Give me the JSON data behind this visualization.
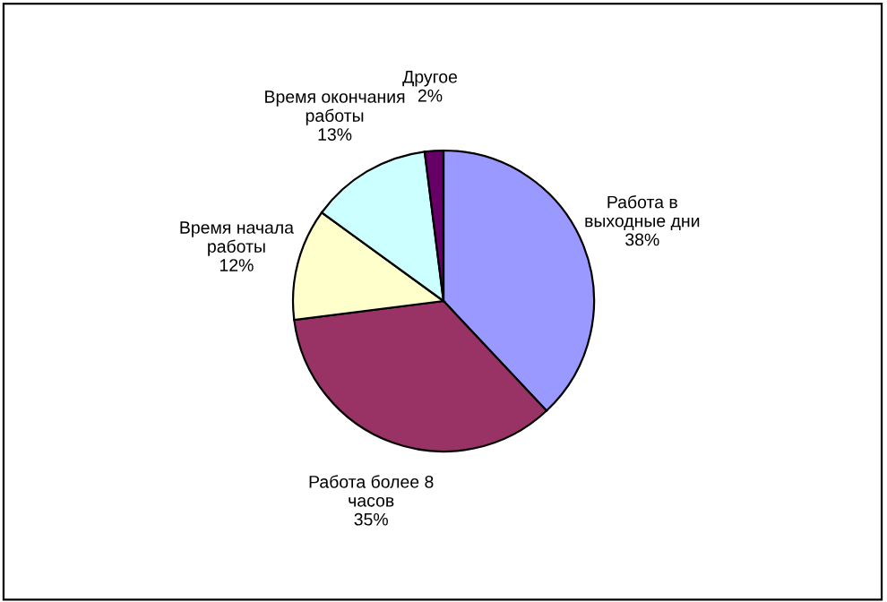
{
  "chart_data": {
    "type": "pie",
    "categories": [
      "Работа в\nвыходные дни",
      "Работа более 8\nчасов",
      "Время начала\nработы",
      "Время окончания\nработы",
      "Другое"
    ],
    "values": [
      38,
      35,
      12,
      13,
      2
    ],
    "colors": [
      "#9999ff",
      "#993366",
      "#ffffcc",
      "#ccffff",
      "#660066"
    ],
    "value_labels": [
      "38%",
      "35%",
      "12%",
      "13%",
      "2%"
    ],
    "legend": false
  }
}
